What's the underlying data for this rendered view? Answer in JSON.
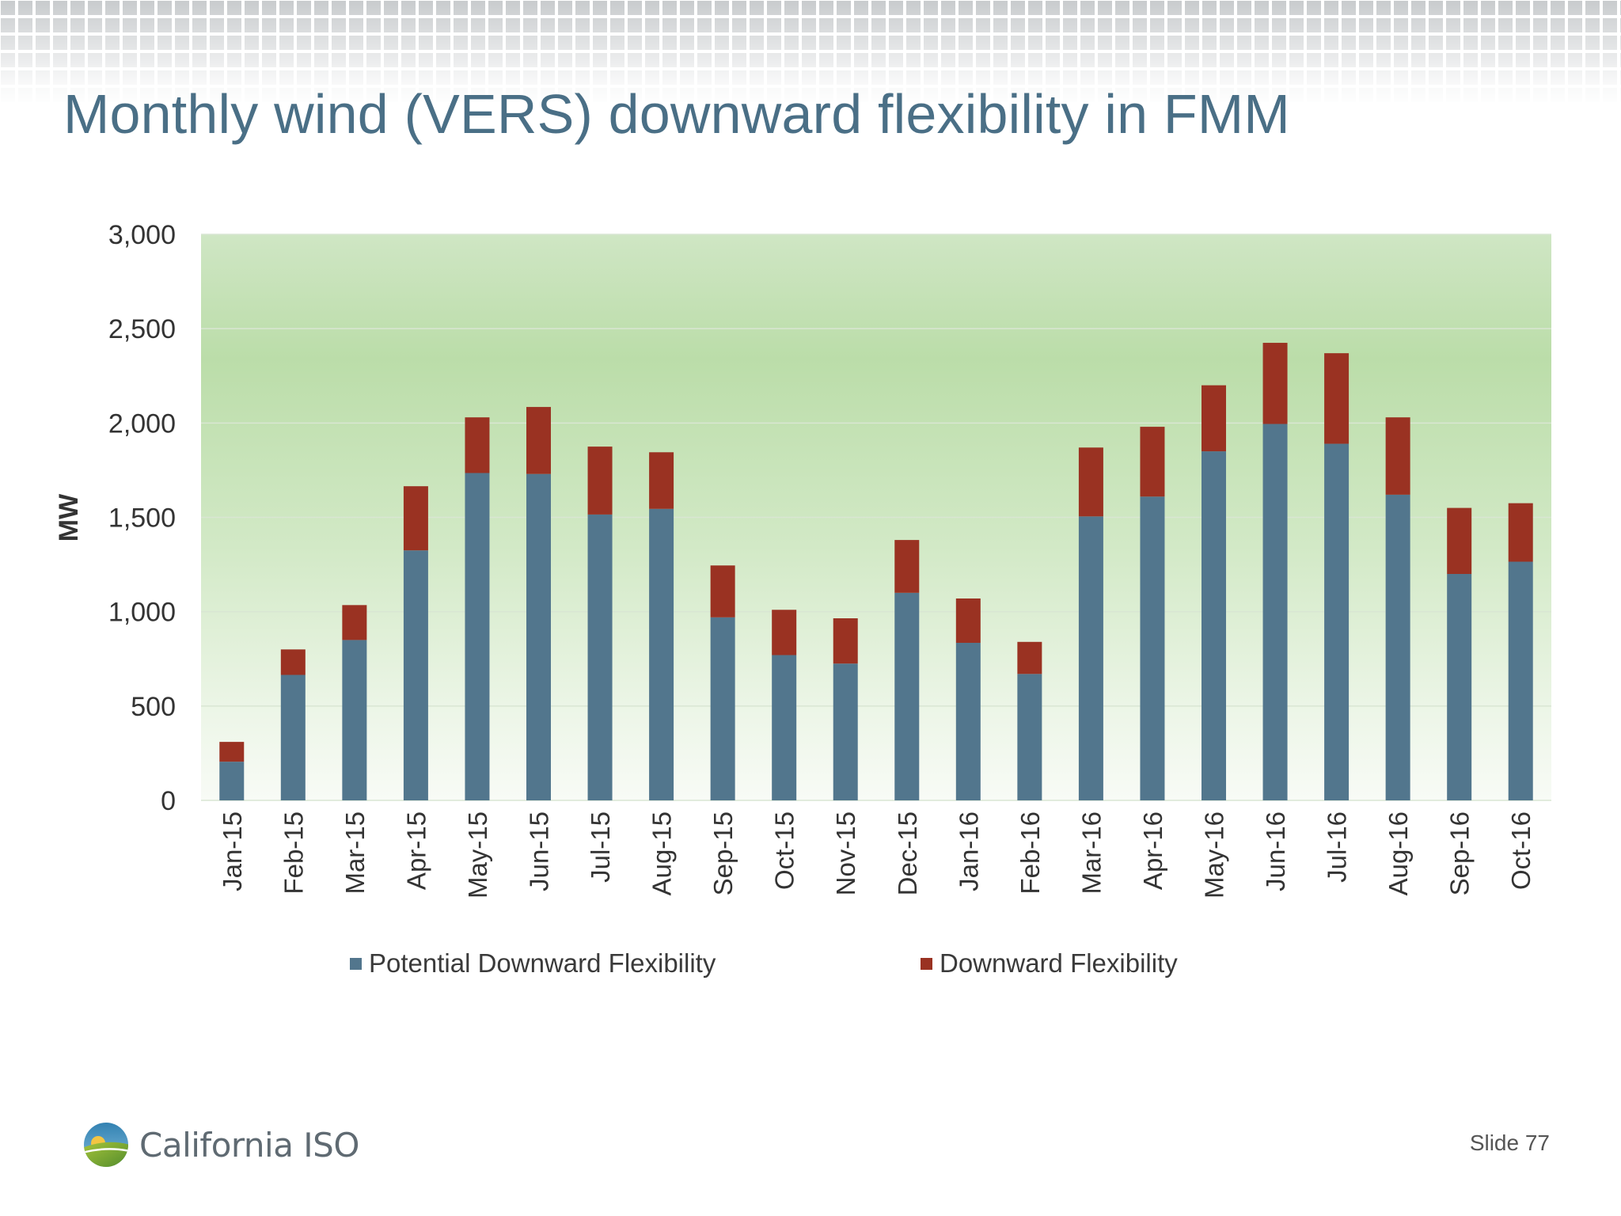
{
  "slide": {
    "title": "Monthly wind (VERS) downward flexibility in FMM",
    "logo_text": "California ISO",
    "slide_number": "Slide 77"
  },
  "chart_data": {
    "type": "bar",
    "stacked": true,
    "categories": [
      "Jan-15",
      "Feb-15",
      "Mar-15",
      "Apr-15",
      "May-15",
      "Jun-15",
      "Jul-15",
      "Aug-15",
      "Sep-15",
      "Oct-15",
      "Nov-15",
      "Dec-15",
      "Jan-16",
      "Feb-16",
      "Mar-16",
      "Apr-16",
      "May-16",
      "Jun-16",
      "Jul-16",
      "Aug-16",
      "Sep-16",
      "Oct-16"
    ],
    "series": [
      {
        "name": "Potential Downward Flexibility",
        "color": "#52768d",
        "values": [
          205,
          665,
          850,
          1325,
          1735,
          1730,
          1515,
          1545,
          970,
          770,
          725,
          1100,
          835,
          670,
          1505,
          1610,
          1850,
          1995,
          1890,
          1620,
          1200,
          1265
        ]
      },
      {
        "name": "Downward Flexibility",
        "color": "#9a3222",
        "values": [
          105,
          135,
          185,
          340,
          295,
          355,
          360,
          300,
          275,
          240,
          240,
          280,
          235,
          170,
          365,
          370,
          350,
          430,
          480,
          410,
          350,
          310
        ]
      }
    ],
    "ylabel": "MW",
    "ylim": [
      0,
      3000
    ],
    "yticks": [
      0,
      500,
      1000,
      1500,
      2000,
      2500,
      3000
    ],
    "ytick_labels": [
      "0",
      "500",
      "1,000",
      "1,500",
      "2,000",
      "2,500",
      "3,000"
    ],
    "grid": true,
    "legend_position": "bottom"
  }
}
